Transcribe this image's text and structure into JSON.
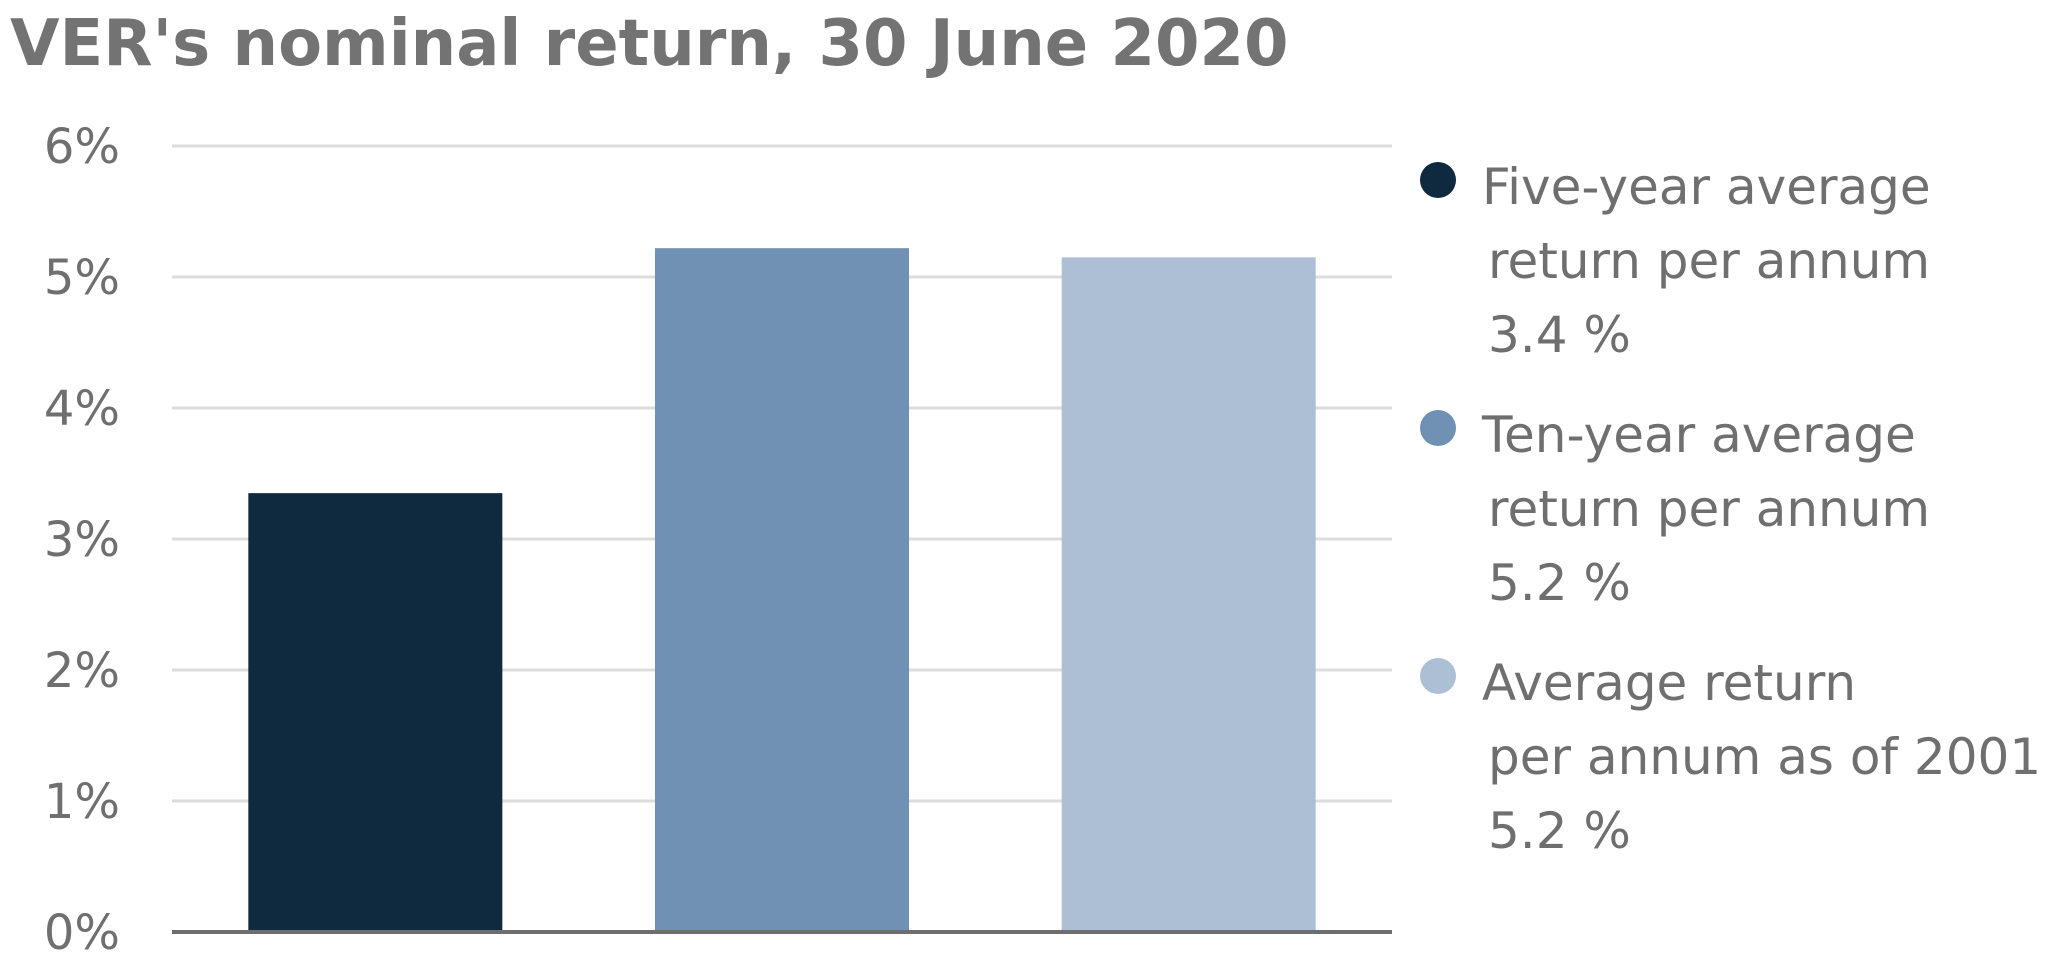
{
  "chart_data": {
    "type": "bar",
    "title": "VER's nominal return, 30 June 2020",
    "xlabel": "",
    "ylabel": "",
    "ylim": [
      0,
      6
    ],
    "yticks": [
      {
        "value": 0,
        "label": "0%"
      },
      {
        "value": 1,
        "label": "1%"
      },
      {
        "value": 2,
        "label": "2%"
      },
      {
        "value": 3,
        "label": "3%"
      },
      {
        "value": 4,
        "label": "4%"
      },
      {
        "value": 5,
        "label": "5%"
      },
      {
        "value": 6,
        "label": "6%"
      }
    ],
    "grid": true,
    "legend_position": "right",
    "series": [
      {
        "value": 3.35,
        "color": "#0f293e",
        "legend_lines": [
          "Five-year average",
          "return per annum",
          "3.4 %"
        ]
      },
      {
        "value": 5.22,
        "color": "#7091b3",
        "legend_lines": [
          "Ten-year average",
          "return per annum",
          "5.2 %"
        ]
      },
      {
        "value": 5.15,
        "color": "#adbfd5",
        "legend_lines": [
          "Average return",
          "per annum as of 2001",
          "5.2 %"
        ]
      }
    ],
    "colors": {
      "grid": "#dcdcdc",
      "axis": "#6e6e6e",
      "tick_text": "#6f6f6f"
    }
  }
}
